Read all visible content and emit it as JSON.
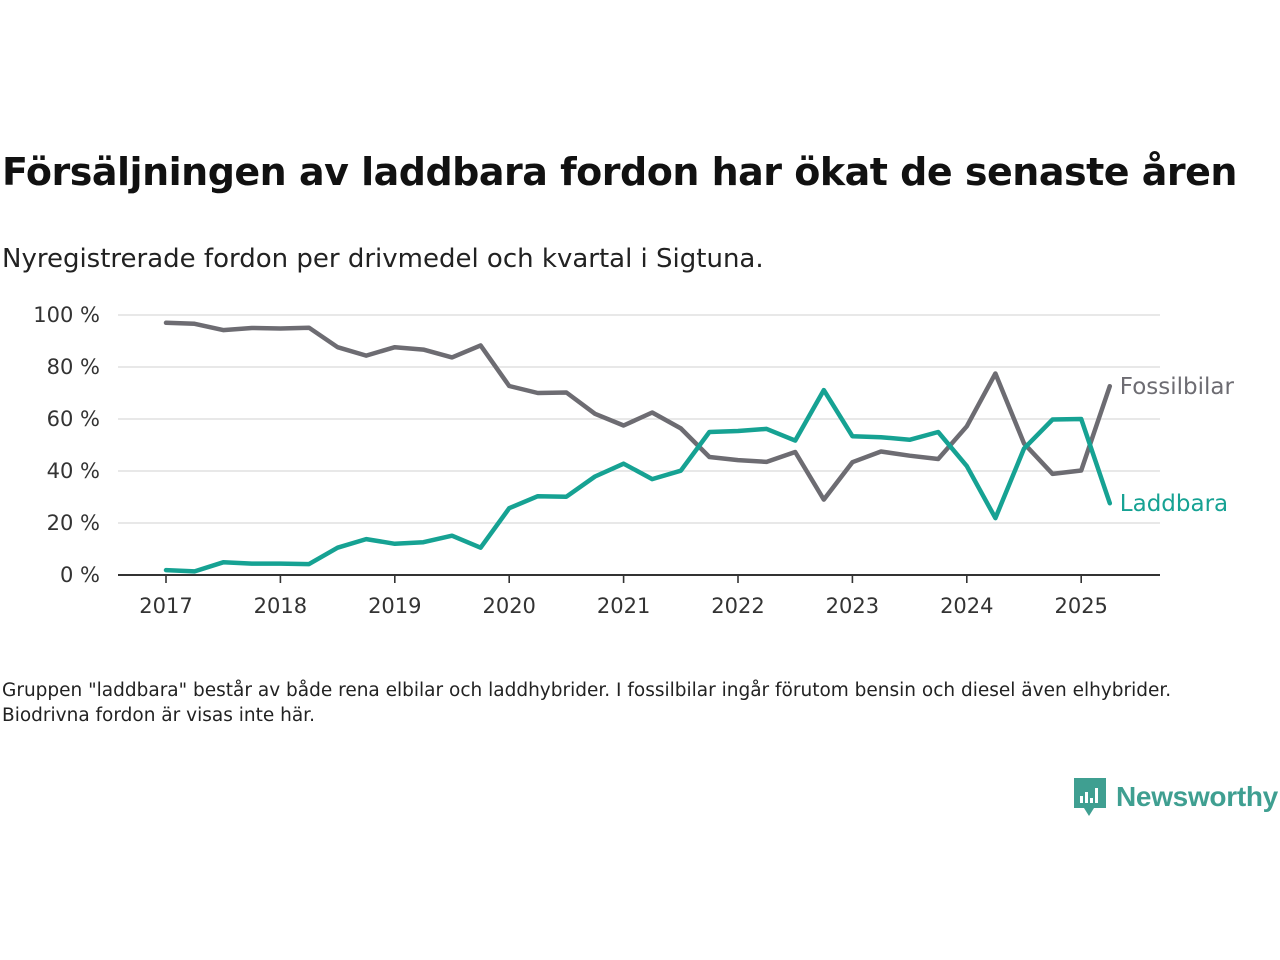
{
  "header": {
    "title": "Försäljningen av laddbara fordon har ökat de senaste åren",
    "subtitle": "Nyregistrerade fordon per drivmedel och kvartal i Sigtuna."
  },
  "footer": {
    "note": "Gruppen \"laddbara\" består av både rena elbilar och laddhybrider. I fossilbilar ingår förutom bensin och diesel även elhybrider. Biodrivna fordon är visas inte här.",
    "brand": "Newsworthy",
    "brand_icon": "bar-chart-speech-bubble-icon"
  },
  "chart_data": {
    "type": "line",
    "title": "Försäljningen av laddbara fordon har ökat de senaste åren",
    "subtitle": "Nyregistrerade fordon per drivmedel och kvartal i Sigtuna.",
    "xlabel": "",
    "ylabel": "",
    "x": [
      "2017-Q1",
      "2017-Q2",
      "2017-Q3",
      "2017-Q4",
      "2018-Q1",
      "2018-Q2",
      "2018-Q3",
      "2018-Q4",
      "2019-Q1",
      "2019-Q2",
      "2019-Q3",
      "2019-Q4",
      "2020-Q1",
      "2020-Q2",
      "2020-Q3",
      "2020-Q4",
      "2021-Q1",
      "2021-Q2",
      "2021-Q3",
      "2021-Q4",
      "2022-Q1",
      "2022-Q2",
      "2022-Q3",
      "2022-Q4",
      "2023-Q1",
      "2023-Q2",
      "2023-Q3",
      "2023-Q4",
      "2024-Q1",
      "2024-Q2",
      "2024-Q3",
      "2024-Q4",
      "2025-Q1",
      "2025-Q2"
    ],
    "x_ticks": [
      "2017",
      "2018",
      "2019",
      "2020",
      "2021",
      "2022",
      "2023",
      "2024",
      "2025"
    ],
    "y_ticks": [
      0,
      20,
      40,
      60,
      80,
      100
    ],
    "y_tick_labels": [
      "0 %",
      "20 %",
      "40 %",
      "60 %",
      "80 %",
      "100 %"
    ],
    "ylim": [
      0,
      100
    ],
    "grid": "horizontal",
    "legend": "direct labels at line ends",
    "series": [
      {
        "name": "Fossilbilar",
        "color": "#6d6c72",
        "values": [
          97.0,
          96.6,
          94.2,
          95.0,
          94.8,
          95.1,
          87.6,
          84.4,
          87.6,
          86.7,
          83.7,
          88.3,
          72.7,
          70.0,
          70.2,
          62.0,
          57.5,
          62.5,
          56.4,
          45.4,
          44.2,
          43.5,
          47.3,
          29.0,
          43.4,
          47.5,
          45.9,
          44.6,
          57.2,
          77.5,
          50.6,
          38.9,
          40.2,
          72.6
        ]
      },
      {
        "name": "Laddbara",
        "color": "#16a293",
        "values": [
          1.9,
          1.4,
          4.9,
          4.4,
          4.4,
          4.2,
          10.5,
          13.8,
          12.0,
          12.6,
          15.1,
          10.5,
          25.7,
          30.3,
          30.1,
          37.9,
          42.8,
          36.9,
          40.1,
          55.0,
          55.4,
          56.2,
          51.7,
          71.1,
          53.4,
          53.0,
          52.0,
          55.0,
          41.9,
          21.9,
          48.6,
          59.8,
          60.0,
          27.6
        ]
      }
    ]
  }
}
